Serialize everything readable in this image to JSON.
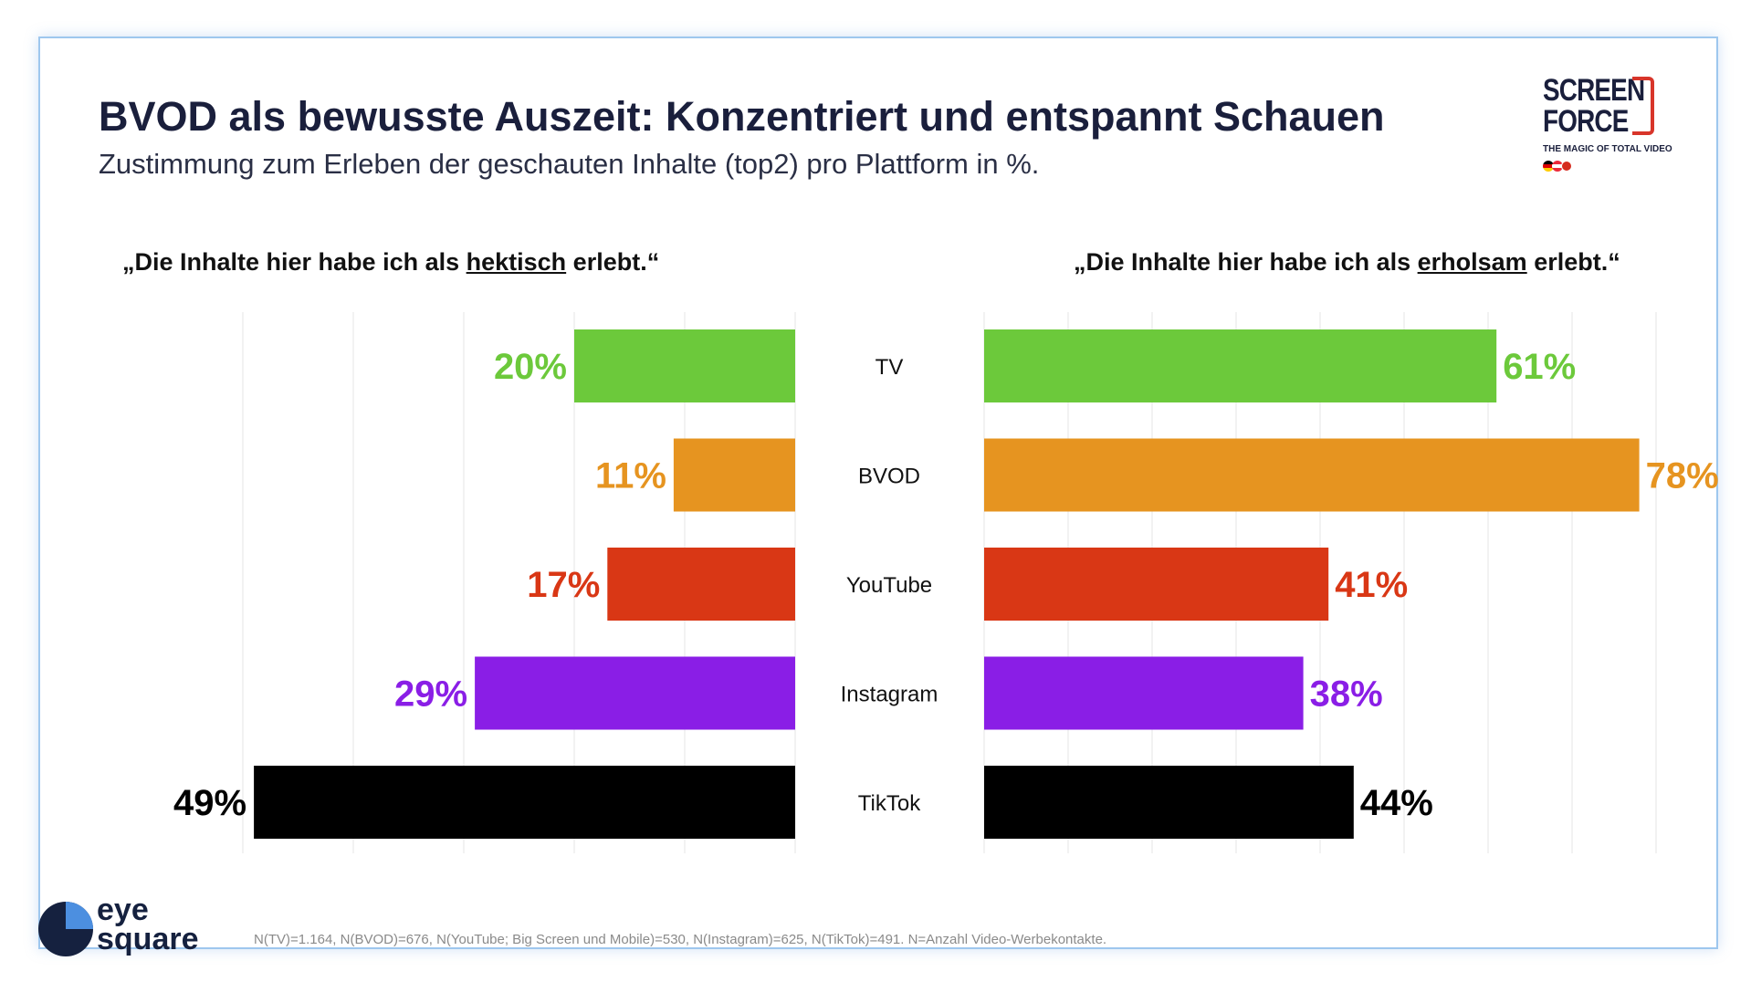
{
  "header": {
    "title": "BVOD als bewusste Auszeit: Konzentriert und entspannt Schauen",
    "subtitle": "Zustimmung zum Erleben der geschauten Inhalte (top2) pro Plattform in %."
  },
  "quotes": {
    "left": {
      "pre": "„Die Inhalte hier habe ich als ",
      "keyword": "hektisch",
      "post": " erlebt.“"
    },
    "right": {
      "pre": "„Die Inhalte hier habe ich als ",
      "keyword": "erholsam",
      "post": " erlebt.“"
    }
  },
  "logos": {
    "screenforce_line1": "SCREEN",
    "screenforce_line2": "FORCE",
    "screenforce_tagline": "THE MAGIC OF TOTAL VIDEO",
    "eyesquare_line1": "eye",
    "eyesquare_line2": "square"
  },
  "footnote": "N(TV)=1.164, N(BVOD)=676, N(YouTube; Big Screen und Mobile)=530, N(Instagram)=625, N(TikTok)=491. N=Anzahl Video-Werbekontakte.",
  "colors": {
    "TV": "#6cc93b",
    "BVOD": "#e69420",
    "YouTube": "#d93715",
    "Instagram": "#8a1ee6",
    "TikTok": "#000000"
  },
  "chart_data": {
    "type": "bar",
    "orientation": "horizontal",
    "categories": [
      "TV",
      "BVOD",
      "YouTube",
      "Instagram",
      "TikTok"
    ],
    "series": [
      {
        "name": "hektisch",
        "values": [
          20,
          11,
          17,
          29,
          49
        ],
        "labels": [
          "20%",
          "11%",
          "17%",
          "29%",
          "49%"
        ]
      },
      {
        "name": "erholsam",
        "values": [
          61,
          78,
          41,
          38,
          44
        ],
        "labels": [
          "61%",
          "78%",
          "41%",
          "38%",
          "44%"
        ]
      }
    ],
    "xlim": [
      0,
      100
    ],
    "grid": true
  }
}
